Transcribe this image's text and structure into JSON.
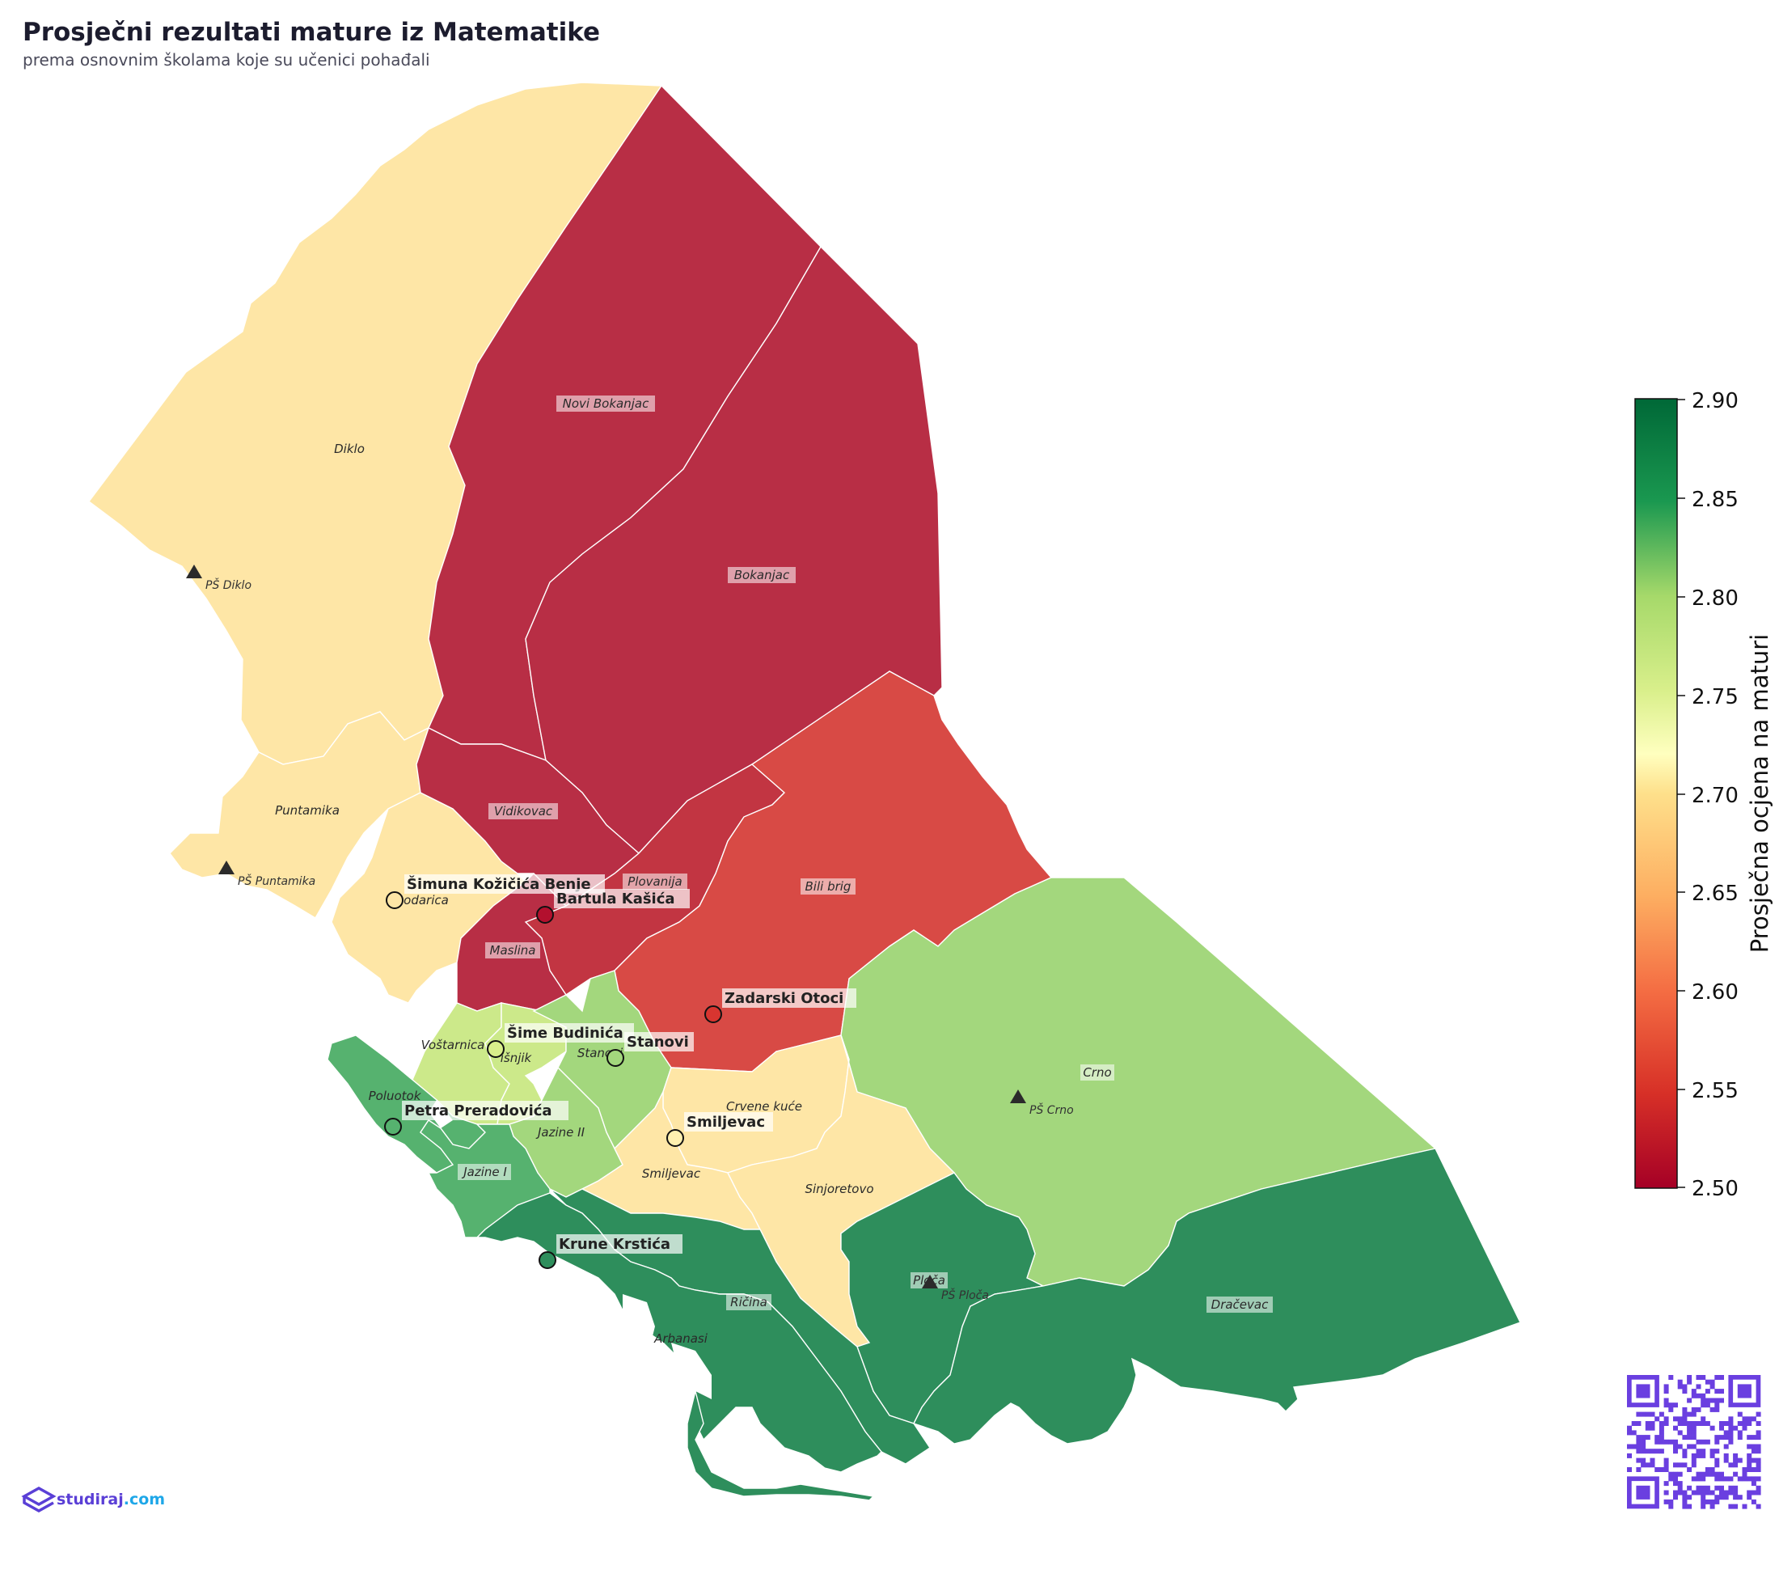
{
  "title": "Prosječni rezultati mature iz Matematike",
  "subtitle": "prema osnovnim školama koje su učenici pohađali",
  "colorbar": {
    "label": "Prosječna ocjena na maturi",
    "min": 2.5,
    "max": 2.9,
    "ticks": [
      "2.90",
      "2.85",
      "2.80",
      "2.75",
      "2.70",
      "2.65",
      "2.60",
      "2.55",
      "2.50"
    ],
    "colormap": "RdYlGn"
  },
  "districts": [
    {
      "name": "Diklo",
      "color": "#fee6a6"
    },
    {
      "name": "Novi Bokanjac",
      "color": "#b82e45"
    },
    {
      "name": "Bokanjac",
      "color": "#b82e45"
    },
    {
      "name": "Puntamika",
      "color": "#fee6a6"
    },
    {
      "name": "Vidikovac",
      "color": "#b82e45"
    },
    {
      "name": "Plovanija",
      "color": "#c23542"
    },
    {
      "name": "Bili brig",
      "color": "#d84a45"
    },
    {
      "name": "Maslina",
      "color": "#b82e45"
    },
    {
      "name": "Crno",
      "color": "#a3d77d"
    },
    {
      "name": "Voštarnica",
      "color": "#cce98a"
    },
    {
      "name": "Višnjik",
      "color": "#cce98a"
    },
    {
      "name": "Stanovi",
      "color": "#a3d77d"
    },
    {
      "name": "Poluotok",
      "color": "#56b26f"
    },
    {
      "name": "Crvene kuće",
      "color": "#fee6a6"
    },
    {
      "name": "Jazine II",
      "color": "#a3d77d"
    },
    {
      "name": "Jazine I",
      "color": "#56b26f"
    },
    {
      "name": "Smiljevac",
      "color": "#fee6a6"
    },
    {
      "name": "Sinjoretovo",
      "color": "#fee6a6"
    },
    {
      "name": "Plóča",
      "color": "#2e8e5c"
    },
    {
      "name": "Ričina",
      "color": "#2e8e5c"
    },
    {
      "name": "Arbanasi",
      "color": "#2e8e5c"
    },
    {
      "name": "Dračevac",
      "color": "#2e8e5c"
    }
  ],
  "district_label_texts": {
    "diklo": "Diklo",
    "novi_bokanjac": "Novi Bokanjac",
    "bokanjac": "Bokanjac",
    "puntamika": "Puntamika",
    "vidikovac": "Vidikovac",
    "plovanija": "Plovanija",
    "bili_brig": "Bili brig",
    "brodarica": "odarica",
    "maslina": "Maslina",
    "crno": "Crno",
    "vostarnica": "Voštarnica",
    "visnjik": "išnjik",
    "stanovi": "Stanovi",
    "poluotok": "Poluotok",
    "crvene_kuce": "Crvene kuće",
    "jazine_ii": "Jazine II",
    "jazine_i": "Jazine I",
    "smiljevac": "Smiljevac",
    "sinjoretovo": "Sinjoretovo",
    "ploca": "Ploča",
    "ricina": "Ričina",
    "arbanasi": "Arbanasi",
    "dracevac": "Dračevac"
  },
  "schools": [
    {
      "name": "Šimuna Kožičića Benje",
      "score": 2.67,
      "color": "#fee6a6"
    },
    {
      "name": "Bartula Kašića",
      "score": 2.5,
      "color": "#b3102e"
    },
    {
      "name": "Zadarski Otoci",
      "score": 2.54,
      "color": "#d83530"
    },
    {
      "name": "Šime Budinića",
      "score": 2.74,
      "color": "#d9ef8b"
    },
    {
      "name": "Stanovi",
      "score": 2.79,
      "color": "#a3d77d"
    },
    {
      "name": "Smiljevac",
      "score": 2.69,
      "color": "#fff0b0"
    },
    {
      "name": "Petra Preradovića",
      "score": 2.83,
      "color": "#56b26f"
    },
    {
      "name": "Krune Krstića",
      "score": 2.86,
      "color": "#2e8e5c"
    }
  ],
  "branch_schools": [
    "PŠ Diklo",
    "PŠ Puntamika",
    "PŠ Crno",
    "PŠ Ploča"
  ],
  "logo": {
    "brand": "studiraj",
    "tld": ".com",
    "brand_color": "#5a3fd6",
    "tld_color": "#1ea7e8"
  },
  "qr_color": "#6a3fe0"
}
